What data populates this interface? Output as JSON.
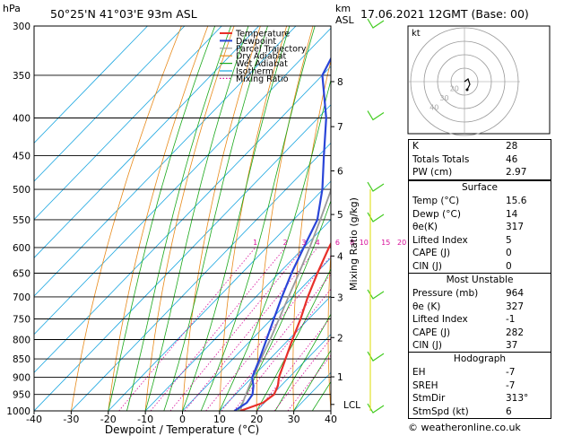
{
  "header": {
    "units_hpa": "hPa",
    "location": "50°25'N 41°03'E 93m ASL",
    "km_label": "km",
    "asl_label": "ASL",
    "datetime": "17.06.2021 12GMT (Base: 00)"
  },
  "legend": [
    "Temperature",
    "Dewpoint",
    "Parcel Trajectory",
    "Dry Adiabat",
    "Wet Adiabat",
    "Isotherm",
    "Mixing Ratio"
  ],
  "colors": {
    "temperature": "#e8302a",
    "dewpoint": "#2a45d8",
    "parcel": "#9a9a9a",
    "dry_adiabat": "#e88a1a",
    "wet_adiabat": "#1aa81a",
    "isotherm": "#1aa6e0",
    "mixing_ratio": "#d8109a",
    "wind_barb": "#44cc22"
  },
  "chart_data": {
    "type": "line",
    "title": "",
    "xlabel": "Dewpoint / Temperature (°C)",
    "ylabel": "",
    "ylim": [
      1000,
      300
    ],
    "xlim": [
      -40,
      40
    ],
    "x_ticks": [
      "-40",
      "-30",
      "-20",
      "-10",
      "0",
      "10",
      "20",
      "30",
      "40"
    ],
    "pressure_ticks": [
      "300",
      "350",
      "400",
      "450",
      "500",
      "550",
      "600",
      "650",
      "700",
      "750",
      "800",
      "850",
      "900",
      "950",
      "1000"
    ],
    "km_ticks": [
      {
        "label": "8",
        "p": 357
      },
      {
        "label": "7",
        "p": 411
      },
      {
        "label": "6",
        "p": 472
      },
      {
        "label": "5",
        "p": 541
      },
      {
        "label": "4",
        "p": 616
      },
      {
        "label": "3",
        "p": 701
      },
      {
        "label": "2",
        "p": 795
      },
      {
        "label": "1",
        "p": 899
      },
      {
        "label": "LCL",
        "p": 980
      }
    ],
    "mixing_ratio_label": "Mixing Ratio (g/kg)",
    "mixing_ratio_values": [
      "1",
      "2",
      "3",
      "4",
      "6",
      "8",
      "10",
      "15",
      "20",
      "25"
    ],
    "series": [
      {
        "name": "Temperature",
        "points": [
          {
            "p": 1000,
            "t": 15.6
          },
          {
            "p": 975,
            "t": 19.6
          },
          {
            "p": 950,
            "t": 20.4
          },
          {
            "p": 925,
            "t": 19.2
          },
          {
            "p": 900,
            "t": 17.2
          },
          {
            "p": 850,
            "t": 14.2
          },
          {
            "p": 800,
            "t": 11.0
          },
          {
            "p": 750,
            "t": 7.8
          },
          {
            "p": 700,
            "t": 4.0
          },
          {
            "p": 650,
            "t": 0.4
          },
          {
            "p": 600,
            "t": -3.2
          },
          {
            "p": 550,
            "t": -6.6
          },
          {
            "p": 520,
            "t": -8.2
          },
          {
            "p": 500,
            "t": -10.0
          },
          {
            "p": 450,
            "t": -14.6
          },
          {
            "p": 400,
            "t": -20.2
          },
          {
            "p": 350,
            "t": -28.6
          },
          {
            "p": 300,
            "t": -38.4
          }
        ]
      },
      {
        "name": "Dewpoint",
        "points": [
          {
            "p": 1000,
            "t": 14.0
          },
          {
            "p": 975,
            "t": 15.2
          },
          {
            "p": 950,
            "t": 14.6
          },
          {
            "p": 925,
            "t": 12.6
          },
          {
            "p": 900,
            "t": 10.0
          },
          {
            "p": 850,
            "t": 7.2
          },
          {
            "p": 800,
            "t": 4.0
          },
          {
            "p": 750,
            "t": 0.6
          },
          {
            "p": 700,
            "t": -3.0
          },
          {
            "p": 650,
            "t": -6.6
          },
          {
            "p": 600,
            "t": -10.0
          },
          {
            "p": 550,
            "t": -13.6
          },
          {
            "p": 500,
            "t": -20.2
          },
          {
            "p": 450,
            "t": -28.6
          },
          {
            "p": 400,
            "t": -37.8
          },
          {
            "p": 350,
            "t": -50.0
          },
          {
            "p": 300,
            "t": -56.0
          }
        ]
      },
      {
        "name": "Parcel Trajectory",
        "points": [
          {
            "p": 1000,
            "t": 15.6
          },
          {
            "p": 980,
            "t": 14.4
          },
          {
            "p": 950,
            "t": 12.8
          },
          {
            "p": 900,
            "t": 10.2
          },
          {
            "p": 850,
            "t": 7.6
          },
          {
            "p": 800,
            "t": 5.0
          },
          {
            "p": 750,
            "t": 2.0
          },
          {
            "p": 700,
            "t": -1.2
          },
          {
            "p": 650,
            "t": -4.6
          },
          {
            "p": 600,
            "t": -8.4
          },
          {
            "p": 550,
            "t": -12.8
          },
          {
            "p": 500,
            "t": -17.8
          },
          {
            "p": 450,
            "t": -23.6
          },
          {
            "p": 400,
            "t": -30.6
          },
          {
            "p": 350,
            "t": -39.0
          },
          {
            "p": 300,
            "t": -49.0
          }
        ]
      }
    ],
    "wind_barbs": [
      300,
      400,
      500,
      550,
      700,
      850,
      1000
    ]
  },
  "hodograph": {
    "label": "kt",
    "ring_labels": [
      "40",
      "30",
      "20"
    ]
  },
  "indices": [
    {
      "label": "K",
      "value": "28"
    },
    {
      "label": "Totals Totals",
      "value": "46"
    },
    {
      "label": "PW (cm)",
      "value": "2.97"
    }
  ],
  "surface": {
    "title": "Surface",
    "rows": [
      {
        "label": "Temp (°C)",
        "value": "15.6"
      },
      {
        "label": "Dewp (°C)",
        "value": "14"
      },
      {
        "label": "θe(K)",
        "value": "317"
      },
      {
        "label": "Lifted Index",
        "value": "5"
      },
      {
        "label": "CAPE (J)",
        "value": "0"
      },
      {
        "label": "CIN (J)",
        "value": "0"
      }
    ]
  },
  "most_unstable": {
    "title": "Most Unstable",
    "rows": [
      {
        "label": "Pressure (mb)",
        "value": "964"
      },
      {
        "label": "θe (K)",
        "value": "327"
      },
      {
        "label": "Lifted Index",
        "value": "-1"
      },
      {
        "label": "CAPE (J)",
        "value": "282"
      },
      {
        "label": "CIN (J)",
        "value": "37"
      }
    ]
  },
  "hodo_table": {
    "title": "Hodograph",
    "rows": [
      {
        "label": "EH",
        "value": "-7"
      },
      {
        "label": "SREH",
        "value": "-7"
      },
      {
        "label": "StmDir",
        "value": "313°"
      },
      {
        "label": "StmSpd (kt)",
        "value": "6"
      }
    ]
  },
  "copyright": "© weatheronline.co.uk"
}
